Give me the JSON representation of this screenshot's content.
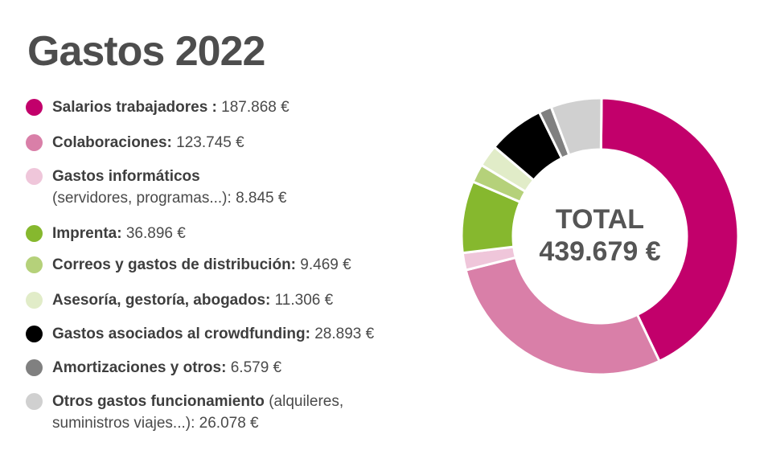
{
  "title": "Gastos 2022",
  "legend": [
    {
      "label": "Salarios trabajadores :",
      "amount": "187.868 €",
      "color": "#c2006b"
    },
    {
      "label": "Colaboraciones:",
      "amount": "123.745 €",
      "color": "#d97fa8"
    },
    {
      "label": "Gastos informáticos",
      "amount": "(servidores, programas...): 8.845 €",
      "color": "#efc6da"
    },
    {
      "label": "Imprenta:",
      "amount": "36.896 €",
      "color": "#86b82e"
    },
    {
      "label": "Correos y gastos de distribución:",
      "amount": "9.469 €",
      "color": "#b5d17a"
    },
    {
      "label": "Asesoría, gestoría, abogados:",
      "amount": "11.306 €",
      "color": "#e1ecc8"
    },
    {
      "label": "Gastos asociados al crowdfunding:",
      "amount": "28.893 €",
      "color": "#000000"
    },
    {
      "label": "Amortizaciones y otros:",
      "amount": "6.579 €",
      "color": "#808080"
    },
    {
      "label": "Otros gastos funcionamiento",
      "amount": "(alquileres, suministros viajes...): 26.078 €",
      "color": "#d0d0d0"
    }
  ],
  "chart_data": {
    "type": "pie",
    "title": "Gastos 2022",
    "categories": [
      "Salarios trabajadores",
      "Colaboraciones",
      "Gastos informáticos",
      "Imprenta",
      "Correos y gastos de distribución",
      "Asesoría, gestoría, abogados",
      "Gastos asociados al crowdfunding",
      "Amortizaciones y otros",
      "Otros gastos funcionamiento"
    ],
    "values": [
      187868,
      123745,
      8845,
      36896,
      9469,
      11306,
      28893,
      6579,
      26078
    ],
    "colors": [
      "#c2006b",
      "#d97fa8",
      "#efc6da",
      "#86b82e",
      "#b5d17a",
      "#e1ecc8",
      "#000000",
      "#808080",
      "#d0d0d0"
    ],
    "center_label": "TOTAL",
    "center_value": "439.679 €"
  }
}
